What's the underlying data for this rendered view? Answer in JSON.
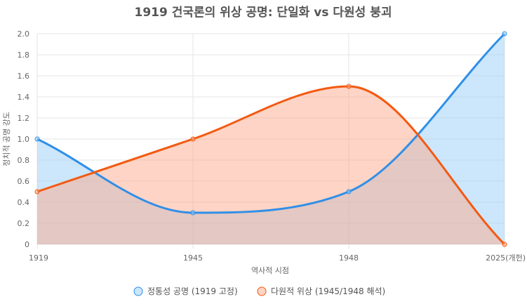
{
  "chart_data": {
    "type": "area",
    "title": "1919 건국론의 위상 공명: 단일화 vs 다원성 붕괴",
    "xlabel": "역사적 시점",
    "ylabel": "정치적 공명 강도",
    "categories": [
      "1919",
      "1945",
      "1948",
      "2025(개헌)"
    ],
    "ylim": [
      0,
      2.0
    ],
    "yticks": [
      "0",
      "0.2",
      "0.4",
      "0.6",
      "0.8",
      "1.0",
      "1.2",
      "1.4",
      "1.6",
      "1.8",
      "2.0"
    ],
    "grid": true,
    "legend_position": "bottom",
    "series": [
      {
        "name": "정통성 공명 (1919 고정)",
        "values": [
          1.0,
          0.3,
          0.5,
          2.0
        ],
        "color": "#2f8fe8",
        "fill": "rgba(154,206,248,0.5)"
      },
      {
        "name": "다원적 위상 (1945/1948 해석)",
        "values": [
          0.5,
          1.0,
          1.5,
          0.0
        ],
        "color": "#f25a12",
        "fill": "rgba(252,170,140,0.5)"
      }
    ]
  }
}
